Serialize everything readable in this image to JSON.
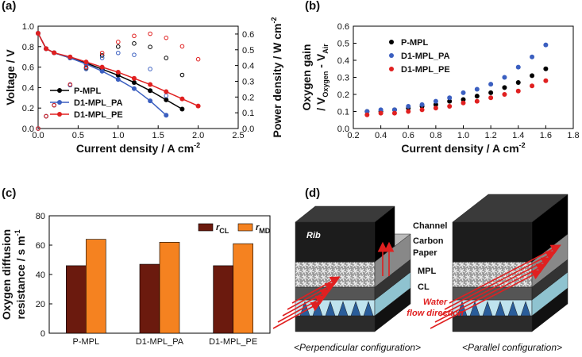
{
  "chart_data": [
    {
      "type": "line",
      "panel_label": "(a)",
      "xlabel": [
        [
          {
            "text": "Current density / A cm"
          },
          {
            "text": "-2",
            "sup": true
          }
        ]
      ],
      "ylabel": [
        [
          {
            "text": "Voltage / V"
          }
        ]
      ],
      "y2label": [
        [
          {
            "text": "Power density / W cm"
          },
          {
            "text": "-2",
            "sup": true
          }
        ]
      ],
      "xlim": [
        0,
        2.5
      ],
      "xticks": [
        {
          "value": 0,
          "label": "0.0"
        },
        {
          "value": 0.5,
          "label": "0.5"
        },
        {
          "value": 1,
          "label": "1.0"
        },
        {
          "value": 1.5,
          "label": "1.5"
        },
        {
          "value": 2,
          "label": "2.0"
        },
        {
          "value": 2.5,
          "label": "2.5"
        }
      ],
      "ylim": [
        0,
        1
      ],
      "yticks": [
        {
          "value": 0,
          "label": "0.0"
        },
        0.2,
        0.4,
        0.6,
        0.8,
        {
          "value": 1,
          "label": "1.0"
        }
      ],
      "y2lim": [
        0,
        0.65
      ],
      "y2ticks": [
        {
          "value": 0,
          "label": "0.0"
        },
        0.1,
        0.2,
        0.3,
        0.4,
        0.5,
        0.6
      ],
      "series": [
        {
          "name": "P-MPL",
          "color": "#000000",
          "x": [
            0,
            0.1,
            0.2,
            0.4,
            0.6,
            0.8,
            1,
            1.2,
            1.4,
            1.6,
            1.8
          ],
          "values": [
            0.93,
            0.78,
            0.74,
            0.69,
            0.64,
            0.58,
            0.52,
            0.45,
            0.37,
            0.28,
            0.19
          ],
          "power": [
            0,
            0.078,
            0.148,
            0.276,
            0.384,
            0.464,
            0.52,
            0.54,
            0.518,
            0.448,
            0.34
          ]
        },
        {
          "name": "D1-MPL_PA",
          "color": "#3b5fc0",
          "x": [
            0,
            0.1,
            0.2,
            0.4,
            0.6,
            0.8,
            1,
            1.2,
            1.4,
            1.6
          ],
          "values": [
            0.93,
            0.78,
            0.74,
            0.69,
            0.63,
            0.56,
            0.48,
            0.39,
            0.27,
            0.13
          ],
          "power": [
            0,
            0.078,
            0.148,
            0.276,
            0.378,
            0.448,
            0.48,
            0.468,
            0.378,
            0.208
          ]
        },
        {
          "name": "D1-MPL_PE",
          "color": "#e02020",
          "x": [
            0,
            0.1,
            0.2,
            0.4,
            0.6,
            0.8,
            1,
            1.2,
            1.4,
            1.6,
            1.8,
            2
          ],
          "values": [
            0.93,
            0.78,
            0.74,
            0.7,
            0.65,
            0.6,
            0.55,
            0.49,
            0.43,
            0.36,
            0.29,
            0.22
          ],
          "power": [
            0,
            0.078,
            0.148,
            0.28,
            0.39,
            0.48,
            0.55,
            0.588,
            0.602,
            0.576,
            0.522,
            0.44
          ]
        }
      ]
    },
    {
      "type": "scatter",
      "panel_label": "(b)",
      "xlabel": [
        [
          {
            "text": "Current density / A cm"
          },
          {
            "text": "-2",
            "sup": true
          }
        ]
      ],
      "ylabel": [
        [
          {
            "text": "Oxygen gain"
          }
        ],
        [
          {
            "text": "/ V"
          },
          {
            "text": "Oxygen",
            "sub": true
          },
          {
            "text": " - V"
          },
          {
            "text": "Air",
            "sub": true
          }
        ]
      ],
      "xlim": [
        0.2,
        1.8
      ],
      "xticks": [
        0.2,
        0.4,
        0.6,
        0.8,
        {
          "value": 1,
          "label": "1.0"
        },
        1.2,
        1.4,
        1.6,
        1.8
      ],
      "ylim": [
        0,
        0.6
      ],
      "yticks": [
        {
          "value": 0,
          "label": "0.0"
        },
        0.1,
        0.2,
        0.3,
        0.4,
        0.5,
        0.6
      ],
      "x": [
        0.3,
        0.4,
        0.5,
        0.6,
        0.7,
        0.8,
        0.9,
        1,
        1.1,
        1.2,
        1.3,
        1.4,
        1.5,
        1.6
      ],
      "series": [
        {
          "name": "P-MPL",
          "color": "#000000",
          "values": [
            0.1,
            0.1,
            0.11,
            0.12,
            0.13,
            0.14,
            0.16,
            0.17,
            0.19,
            0.21,
            0.24,
            0.27,
            0.31,
            0.35
          ]
        },
        {
          "name": "D1-MPL_PA",
          "color": "#3b5fc0",
          "values": [
            0.1,
            0.11,
            0.11,
            0.13,
            0.14,
            0.16,
            0.18,
            0.21,
            0.23,
            0.26,
            0.3,
            0.36,
            0.42,
            0.49
          ]
        },
        {
          "name": "D1-MPL_PE",
          "color": "#e02020",
          "values": [
            0.08,
            0.09,
            0.09,
            0.1,
            0.11,
            0.12,
            0.13,
            0.15,
            0.16,
            0.18,
            0.2,
            0.22,
            0.25,
            0.28
          ]
        }
      ]
    },
    {
      "type": "bar",
      "panel_label": "(c)",
      "ylabel": [
        [
          {
            "text": "Oxygen diffusion"
          }
        ],
        [
          {
            "text": "resistance / s m"
          },
          {
            "text": "-1",
            "sup": true
          }
        ]
      ],
      "categories": [
        "P-MPL",
        "D1-MPL_PA",
        "D1-MPL_PE"
      ],
      "ylim": [
        0,
        80
      ],
      "yticks": [
        0,
        20,
        40,
        60,
        80
      ],
      "series": [
        {
          "name": [
            [
              {
                "text": "r",
                "italic": true
              },
              {
                "text": "CL",
                "sub": true
              }
            ]
          ],
          "color": "#6b1a0e",
          "values": [
            46,
            47,
            46
          ]
        },
        {
          "name": [
            [
              {
                "text": "r",
                "italic": true
              },
              {
                "text": "MD",
                "sub": true
              }
            ]
          ],
          "color": "#f58220",
          "values": [
            64,
            62,
            61
          ]
        }
      ]
    }
  ],
  "diagram": {
    "panel_label": "(d)",
    "channel": "Channel",
    "carbon": "Carbon",
    "paper": "Paper",
    "mpl": "MPL",
    "cl": "CL",
    "rib": "Rib",
    "water1": "Water",
    "water2": "flow direction",
    "caption_left": "<Perpendicular configuration>",
    "caption_right": "<Parallel configuration>"
  }
}
